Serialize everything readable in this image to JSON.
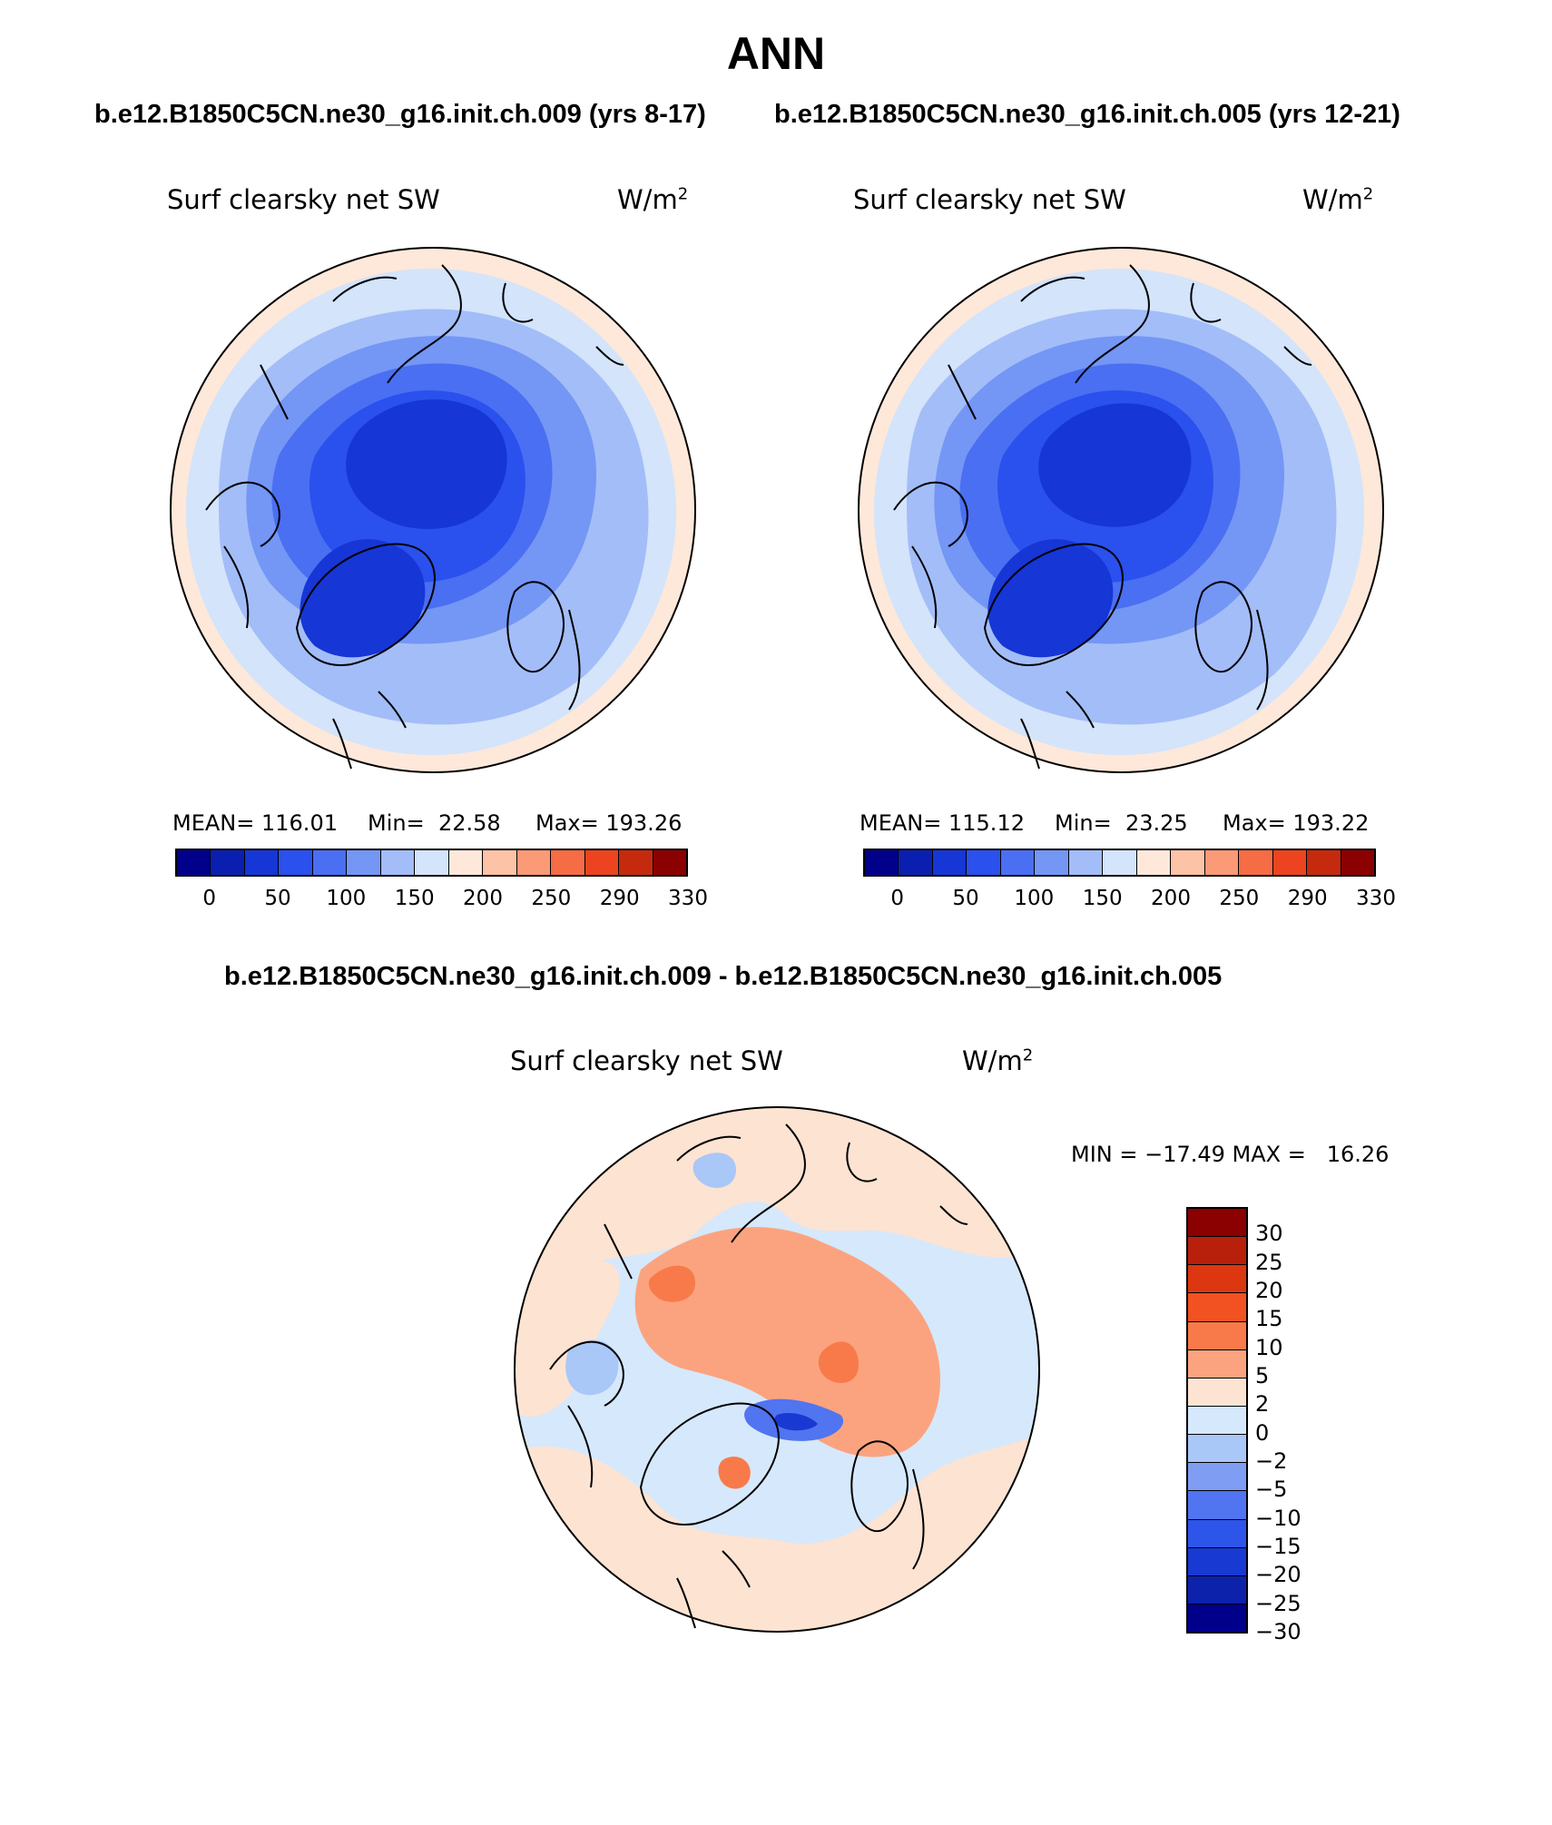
{
  "title": "ANN",
  "panels": [
    {
      "subtitle": "b.e12.B1850C5CN.ne30_g16.init.ch.009 (yrs 8-17)",
      "variable": "Surf clearsky net SW",
      "units_base": "W/m",
      "units_exp": "2",
      "mean_label": "MEAN=",
      "mean": "116.01",
      "min_label": "Min=",
      "min": "22.58",
      "max_label": "Max=",
      "max": "193.26"
    },
    {
      "subtitle": "b.e12.B1850C5CN.ne30_g16.init.ch.005 (yrs 12-21)",
      "variable": "Surf clearsky net SW",
      "units_base": "W/m",
      "units_exp": "2",
      "mean_label": "MEAN=",
      "mean": "115.12",
      "min_label": "Min=",
      "min": "23.25",
      "max_label": "Max=",
      "max": "193.22"
    }
  ],
  "abs_colorbar": {
    "colors": [
      "#00008b",
      "#0a1fb0",
      "#1636d6",
      "#2a50ee",
      "#4a6ff2",
      "#7496f5",
      "#a3bdf8",
      "#d3e4fb",
      "#fde8da",
      "#fcc3a6",
      "#fa9a76",
      "#f56c45",
      "#ec4420",
      "#c52a0e",
      "#8b0000"
    ],
    "tick_labels": [
      "0",
      "50",
      "100",
      "150",
      "200",
      "250",
      "290",
      "330"
    ]
  },
  "diff": {
    "subtitle": "b.e12.B1850C5CN.ne30_g16.init.ch.009 - b.e12.B1850C5CN.ne30_g16.init.ch.005",
    "variable": "Surf clearsky net SW",
    "units_base": "W/m",
    "units_exp": "2",
    "minmax": "MIN = −17.49 MAX =   16.26",
    "colors_top_to_bottom": [
      "#8b0000",
      "#b8200c",
      "#dd3712",
      "#f25222",
      "#f87a4a",
      "#fba37f",
      "#fde3d2",
      "#d6e8fb",
      "#a9c7f7",
      "#7f9df3",
      "#5174f0",
      "#2e55ea",
      "#1839d2",
      "#0c22aa",
      "#00008b"
    ],
    "tick_labels_top_to_bottom": [
      "30",
      "25",
      "20",
      "15",
      "10",
      "5",
      "2",
      "0",
      "−2",
      "−5",
      "−10",
      "−15",
      "−20",
      "−25",
      "−30"
    ]
  }
}
